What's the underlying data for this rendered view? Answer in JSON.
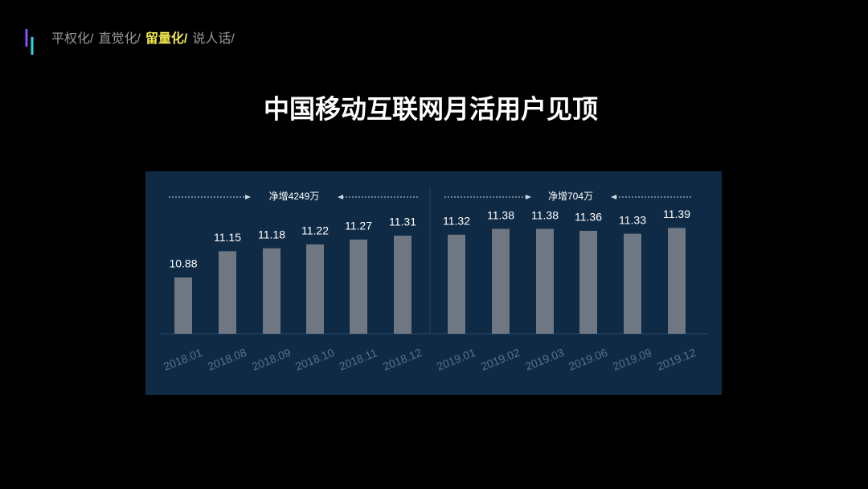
{
  "nav": [
    {
      "label": "平权化/",
      "color": "#9a9a9a"
    },
    {
      "label": "直觉化/",
      "color": "#9a9a9a"
    },
    {
      "label": "留量化/",
      "color": "#f2e84a"
    },
    {
      "label": "说人话/",
      "color": "#9a9a9a"
    }
  ],
  "chart_data": {
    "type": "bar",
    "title": "中国移动互联网月活用户见顶",
    "categories": [
      "2018.01",
      "2018.08",
      "2018.09",
      "2018.10",
      "2018.11",
      "2018.12",
      "2019.01",
      "2019.02",
      "2019.03",
      "2019.06",
      "2019.09",
      "2019.12"
    ],
    "values": [
      10.88,
      11.15,
      11.18,
      11.22,
      11.27,
      11.31,
      11.32,
      11.38,
      11.38,
      11.36,
      11.33,
      11.39
    ],
    "color": "#6e7782",
    "ylim": [
      10.3,
      11.6
    ],
    "annotations": [
      "净增4249万",
      "净增704万"
    ]
  }
}
